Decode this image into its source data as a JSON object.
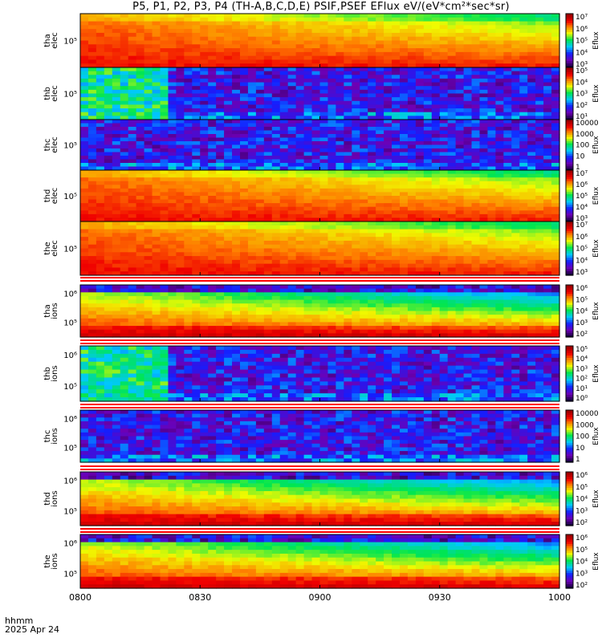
{
  "title": "P5, P1, P2, P3, P4 (TH-A,B,C,D,E) PSIF,PSEF EFlux eV/(eV*cm²*sec*sr)",
  "time_axis": {
    "ticks": [
      "0800",
      "0830",
      "0900",
      "0930",
      "1000"
    ],
    "label": "hhmm",
    "date": "2025 Apr 24"
  },
  "colorbar_label": "Eflux",
  "chart_data": {
    "type": "heatmap",
    "x": {
      "start": "0800",
      "end": "1000"
    },
    "panels": [
      {
        "name": "tha elec",
        "ylabel": [
          "tha",
          "elec"
        ],
        "yticks": [
          "10⁵"
        ],
        "cbar_ticks": [
          "10³",
          "10⁴",
          "10⁵",
          "10⁶",
          "10⁷"
        ],
        "pattern": "elec",
        "noisy_until": 0
      },
      {
        "name": "thb elec",
        "ylabel": [
          "thb",
          "elec"
        ],
        "yticks": [
          "10⁵"
        ],
        "cbar_ticks": [
          "10¹",
          "10²",
          "10³",
          "10⁴",
          "10⁵"
        ],
        "pattern": "noise",
        "noisy_until": 0.18
      },
      {
        "name": "thc elec",
        "ylabel": [
          "thc",
          "elec"
        ],
        "yticks": [
          "10⁵"
        ],
        "cbar_ticks": [
          "1",
          "10",
          "100",
          "1000",
          "10000"
        ],
        "pattern": "noise",
        "noisy_until": 0
      },
      {
        "name": "thd elec",
        "ylabel": [
          "thd",
          "elec"
        ],
        "yticks": [
          "10⁵"
        ],
        "cbar_ticks": [
          "10³",
          "10⁴",
          "10⁵",
          "10⁶",
          "10⁷"
        ],
        "pattern": "elec",
        "noisy_until": 0
      },
      {
        "name": "the elec",
        "ylabel": [
          "the",
          "elec"
        ],
        "yticks": [
          "10⁵"
        ],
        "cbar_ticks": [
          "10³",
          "10⁴",
          "10⁵",
          "10⁶",
          "10⁷"
        ],
        "pattern": "elec",
        "noisy_until": 0
      },
      {
        "name": "tha ions",
        "ylabel": [
          "tha",
          "ions"
        ],
        "yticks": [
          "10⁵",
          "10⁶"
        ],
        "cbar_ticks": [
          "10²",
          "10³",
          "10⁴",
          "10⁵",
          "10⁶"
        ],
        "pattern": "ions",
        "noisy_until": 0
      },
      {
        "name": "thb ions",
        "ylabel": [
          "thb",
          "ions"
        ],
        "yticks": [
          "10⁵",
          "10⁶"
        ],
        "cbar_ticks": [
          "10⁰",
          "10¹",
          "10²",
          "10³",
          "10⁴",
          "10⁵"
        ],
        "pattern": "noise",
        "noisy_until": 0.18
      },
      {
        "name": "thc ions",
        "ylabel": [
          "thc",
          "ions"
        ],
        "yticks": [
          "10⁵",
          "10⁶"
        ],
        "cbar_ticks": [
          "1",
          "10",
          "100",
          "1000",
          "10000"
        ],
        "pattern": "noise",
        "noisy_until": 0
      },
      {
        "name": "thd ions",
        "ylabel": [
          "thd",
          "ions"
        ],
        "yticks": [
          "10⁵",
          "10⁶"
        ],
        "cbar_ticks": [
          "10²",
          "10³",
          "10⁴",
          "10⁵",
          "10⁶"
        ],
        "pattern": "ions",
        "noisy_until": 0
      },
      {
        "name": "the ions",
        "ylabel": [
          "the",
          "ions"
        ],
        "yticks": [
          "10⁵",
          "10⁶"
        ],
        "cbar_ticks": [
          "10²",
          "10³",
          "10⁴",
          "10⁵",
          "10⁶"
        ],
        "pattern": "ions",
        "noisy_until": 0
      }
    ]
  }
}
